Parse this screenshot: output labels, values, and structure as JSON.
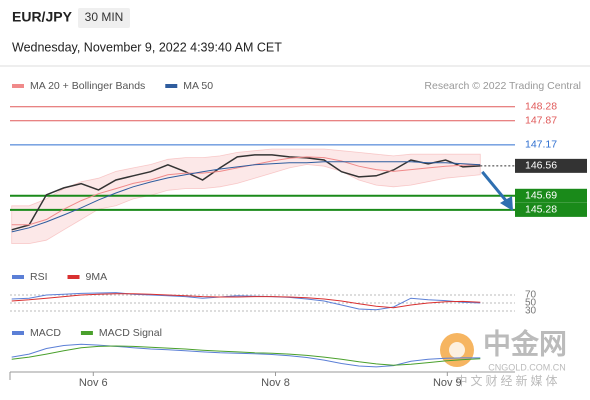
{
  "header": {
    "symbol": "EUR/JPY",
    "timeframe": "30 MIN",
    "date": "Wednesday, November 9, 2022 4:39:40 AM CET",
    "credit": "Research © 2022 Trading Central"
  },
  "watermark": {
    "name": "中金网",
    "url": "CNGOLD.COM.CN",
    "tagline": "中文财经新媒体"
  },
  "chart_data": [
    {
      "type": "line",
      "xlim": [
        -0.1,
        29
      ],
      "xticks": [
        {
          "value": 4.7,
          "label": "Nov 6"
        },
        {
          "value": 15.2,
          "label": "Nov 8"
        },
        {
          "value": 25.1,
          "label": "Nov 9"
        }
      ],
      "ylim": [
        144.55,
        148.62
      ],
      "close": [
        144.7,
        144.84,
        145.72,
        145.92,
        146.04,
        145.86,
        146.15,
        146.27,
        146.39,
        146.59,
        146.39,
        146.15,
        146.5,
        146.82,
        146.88,
        146.88,
        146.82,
        146.79,
        146.73,
        146.39,
        146.24,
        146.27,
        146.44,
        146.73,
        146.62,
        146.73,
        146.53,
        146.56
      ],
      "close_color": "#333333",
      "series": [
        {
          "name": "MA 20 + Bollinger Bands",
          "color": "#f08a8a",
          "values": [
            144.85,
            144.85,
            145.0,
            145.3,
            145.55,
            145.75,
            145.9,
            146.05,
            146.15,
            146.3,
            146.35,
            146.35,
            146.4,
            146.5,
            146.6,
            146.7,
            146.78,
            146.82,
            146.8,
            146.7,
            146.55,
            146.45,
            146.4,
            146.45,
            146.5,
            146.55,
            146.58,
            146.6
          ],
          "upper": [
            145.4,
            145.4,
            145.6,
            145.9,
            146.1,
            146.2,
            146.4,
            146.5,
            146.6,
            146.75,
            146.8,
            146.8,
            146.85,
            146.95,
            147.0,
            147.05,
            147.05,
            147.05,
            147.05,
            147.0,
            146.95,
            146.9,
            146.85,
            146.9,
            146.9,
            146.9,
            146.9,
            146.9
          ],
          "lower": [
            144.3,
            144.3,
            144.4,
            144.7,
            145.0,
            145.3,
            145.4,
            145.6,
            145.7,
            145.85,
            145.9,
            145.9,
            145.95,
            146.05,
            146.2,
            146.35,
            146.5,
            146.6,
            146.55,
            146.4,
            146.15,
            146.0,
            145.95,
            146.0,
            146.1,
            146.2,
            146.25,
            146.3
          ]
        },
        {
          "name": "MA 50",
          "color": "#2f5d9e",
          "values": [
            144.64,
            144.76,
            144.93,
            145.13,
            145.34,
            145.57,
            145.77,
            145.95,
            146.09,
            146.21,
            146.3,
            146.39,
            146.47,
            146.53,
            146.59,
            146.62,
            146.65,
            146.65,
            146.68,
            146.68,
            146.68,
            146.68,
            146.68,
            146.68,
            146.65,
            146.65,
            146.62,
            146.59
          ]
        }
      ],
      "levels": [
        {
          "value": 148.28,
          "color": "#e05a5a",
          "boxed": false
        },
        {
          "value": 147.87,
          "color": "#e05a5a",
          "boxed": false
        },
        {
          "value": 147.17,
          "color": "#2f6fd0",
          "boxed": false
        },
        {
          "value": 146.56,
          "color": "#333333",
          "boxed": true
        },
        {
          "value": 145.69,
          "color": "#1a8a1a",
          "boxed": true
        },
        {
          "value": 145.28,
          "color": "#1a8a1a",
          "boxed": true
        }
      ]
    },
    {
      "type": "line",
      "xlim": [
        -0.1,
        29
      ],
      "ylim": [
        20,
        90
      ],
      "yticks": [
        70,
        50,
        30
      ],
      "series": [
        {
          "name": "RSI",
          "color": "#5b7fd6",
          "values": [
            60,
            62,
            70,
            72,
            74,
            75,
            76,
            72,
            70,
            68,
            66,
            62,
            65,
            68,
            67,
            66,
            64,
            60,
            55,
            45,
            35,
            33,
            40,
            62,
            58,
            56,
            52,
            50
          ]
        },
        {
          "name": "9MA",
          "color": "#d93030",
          "values": [
            55,
            58,
            62,
            66,
            70,
            72,
            73,
            73,
            72,
            70,
            68,
            66,
            65,
            65,
            66,
            66,
            65,
            63,
            60,
            55,
            48,
            42,
            38,
            45,
            50,
            53,
            54,
            52
          ]
        }
      ]
    },
    {
      "type": "line",
      "xlim": [
        -0.1,
        29
      ],
      "ylim": [
        -0.3,
        0.45
      ],
      "series": [
        {
          "name": "MACD",
          "color": "#5b7fd6",
          "values": [
            0.05,
            0.12,
            0.25,
            0.32,
            0.35,
            0.33,
            0.3,
            0.27,
            0.24,
            0.22,
            0.2,
            0.17,
            0.15,
            0.14,
            0.13,
            0.11,
            0.08,
            0.04,
            -0.02,
            -0.1,
            -0.16,
            -0.18,
            -0.15,
            -0.05,
            0.0,
            0.02,
            0.03,
            0.03
          ]
        },
        {
          "name": "MACD Signal",
          "color": "#4aa02c",
          "values": [
            0.0,
            0.05,
            0.12,
            0.2,
            0.27,
            0.3,
            0.31,
            0.3,
            0.28,
            0.26,
            0.24,
            0.21,
            0.19,
            0.17,
            0.15,
            0.14,
            0.12,
            0.09,
            0.05,
            0.0,
            -0.06,
            -0.11,
            -0.14,
            -0.12,
            -0.08,
            -0.04,
            -0.01,
            0.01
          ]
        }
      ]
    }
  ]
}
